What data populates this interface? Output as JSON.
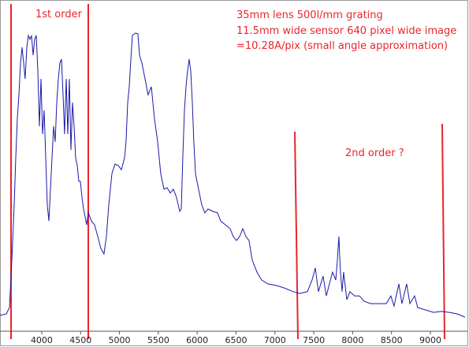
{
  "chart_data": {
    "type": "line",
    "annotations": [
      "1st order",
      "35mm lens 500l/mm grating",
      "11.5mm wide sensor  640 pixel  wide image",
      "=10.28A/pix  (small angle approximation)",
      "2nd order ?"
    ],
    "x": [
      3463,
      3544,
      3585,
      3615,
      3646,
      3666,
      3686,
      3706,
      3727,
      3747,
      3767,
      3787,
      3808,
      3828,
      3848,
      3869,
      3889,
      3909,
      3929,
      3950,
      3970,
      3990,
      4011,
      4031,
      4051,
      4071,
      4092,
      4112,
      4132,
      4153,
      4173,
      4193,
      4213,
      4234,
      4254,
      4274,
      4294,
      4315,
      4335,
      4355,
      4376,
      4396,
      4416,
      4436,
      4457,
      4477,
      4497,
      4518,
      4538,
      4558,
      4578,
      4599,
      4639,
      4680,
      4720,
      4761,
      4801,
      4832,
      4862,
      4903,
      4943,
      4984,
      5025,
      5065,
      5085,
      5106,
      5126,
      5146,
      5167,
      5207,
      5238,
      5258,
      5288,
      5329,
      5369,
      5410,
      5450,
      5491,
      5531,
      5572,
      5613,
      5653,
      5694,
      5734,
      5775,
      5795,
      5815,
      5836,
      5856,
      5876,
      5897,
      5917,
      5937,
      5957,
      5978,
      6018,
      6059,
      6099,
      6140,
      6201,
      6262,
      6302,
      6363,
      6424,
      6464,
      6505,
      6546,
      6586,
      6627,
      6667,
      6708,
      6769,
      6829,
      6911,
      7012,
      7113,
      7235,
      7316,
      7418,
      7478,
      7519,
      7560,
      7620,
      7661,
      7701,
      7742,
      7783,
      7803,
      7823,
      7843,
      7864,
      7884,
      7925,
      7965,
      8026,
      8087,
      8148,
      8229,
      8330,
      8432,
      8492,
      8533,
      8594,
      8634,
      8695,
      8736,
      8797,
      8837,
      8939,
      9040,
      9141,
      9243,
      9344,
      9446
    ],
    "series": [
      {
        "color": "#1a1aa8",
        "values": [
          5.3,
          5.8,
          7.9,
          23.7,
          42.1,
          57.9,
          71.1,
          78.9,
          89.5,
          94.7,
          89.5,
          84.2,
          94.7,
          98.7,
          97.4,
          98.7,
          92.1,
          97.4,
          98.7,
          86.8,
          68.4,
          84.2,
          65.8,
          73.7,
          57.9,
          42.1,
          36.8,
          47.4,
          57.9,
          68.4,
          63.2,
          76.3,
          84.2,
          89.5,
          90.8,
          78.9,
          65.8,
          84.2,
          65.8,
          84.2,
          60.5,
          76.3,
          68.4,
          57.9,
          55.3,
          50,
          50,
          44.7,
          40.8,
          38.2,
          35.5,
          39.5,
          36.8,
          35.5,
          31.6,
          27.6,
          25.8,
          31.6,
          42.1,
          52.6,
          55.8,
          55.3,
          53.9,
          57.9,
          63.2,
          76.3,
          81.6,
          90.8,
          98.7,
          99.5,
          99.2,
          92.1,
          89.5,
          84.2,
          78.9,
          81.6,
          71.1,
          63.2,
          52.6,
          47.4,
          47.9,
          46.1,
          47.4,
          44.7,
          40,
          40.8,
          57.9,
          73.7,
          81.6,
          86.8,
          90.8,
          86.8,
          76.3,
          63.2,
          52.6,
          47.4,
          42.1,
          39.5,
          40.8,
          40,
          39.5,
          36.8,
          35.5,
          34.2,
          31.6,
          30.3,
          31.6,
          34.2,
          31.6,
          30.3,
          23.7,
          19.7,
          17.1,
          15.8,
          15.3,
          14.5,
          13.2,
          12.6,
          13.2,
          17.1,
          21.1,
          13.2,
          18.4,
          11.8,
          15.8,
          19.7,
          17.1,
          23.7,
          31.6,
          19.7,
          13.2,
          19.7,
          10.5,
          13.2,
          11.8,
          11.8,
          10,
          9.2,
          9.2,
          9.2,
          11.8,
          8.4,
          15.8,
          9.2,
          15.8,
          9.2,
          11.8,
          7.9,
          7.1,
          6.3,
          6.6,
          6.3,
          5.8,
          4.7
        ]
      }
    ],
    "xlim": [
      3463,
      9497
    ],
    "ylim": [
      0,
      100
    ],
    "xticks": [
      4000,
      4500,
      5000,
      5500,
      6000,
      6500,
      7000,
      7500,
      8000,
      8500,
      9000
    ]
  }
}
